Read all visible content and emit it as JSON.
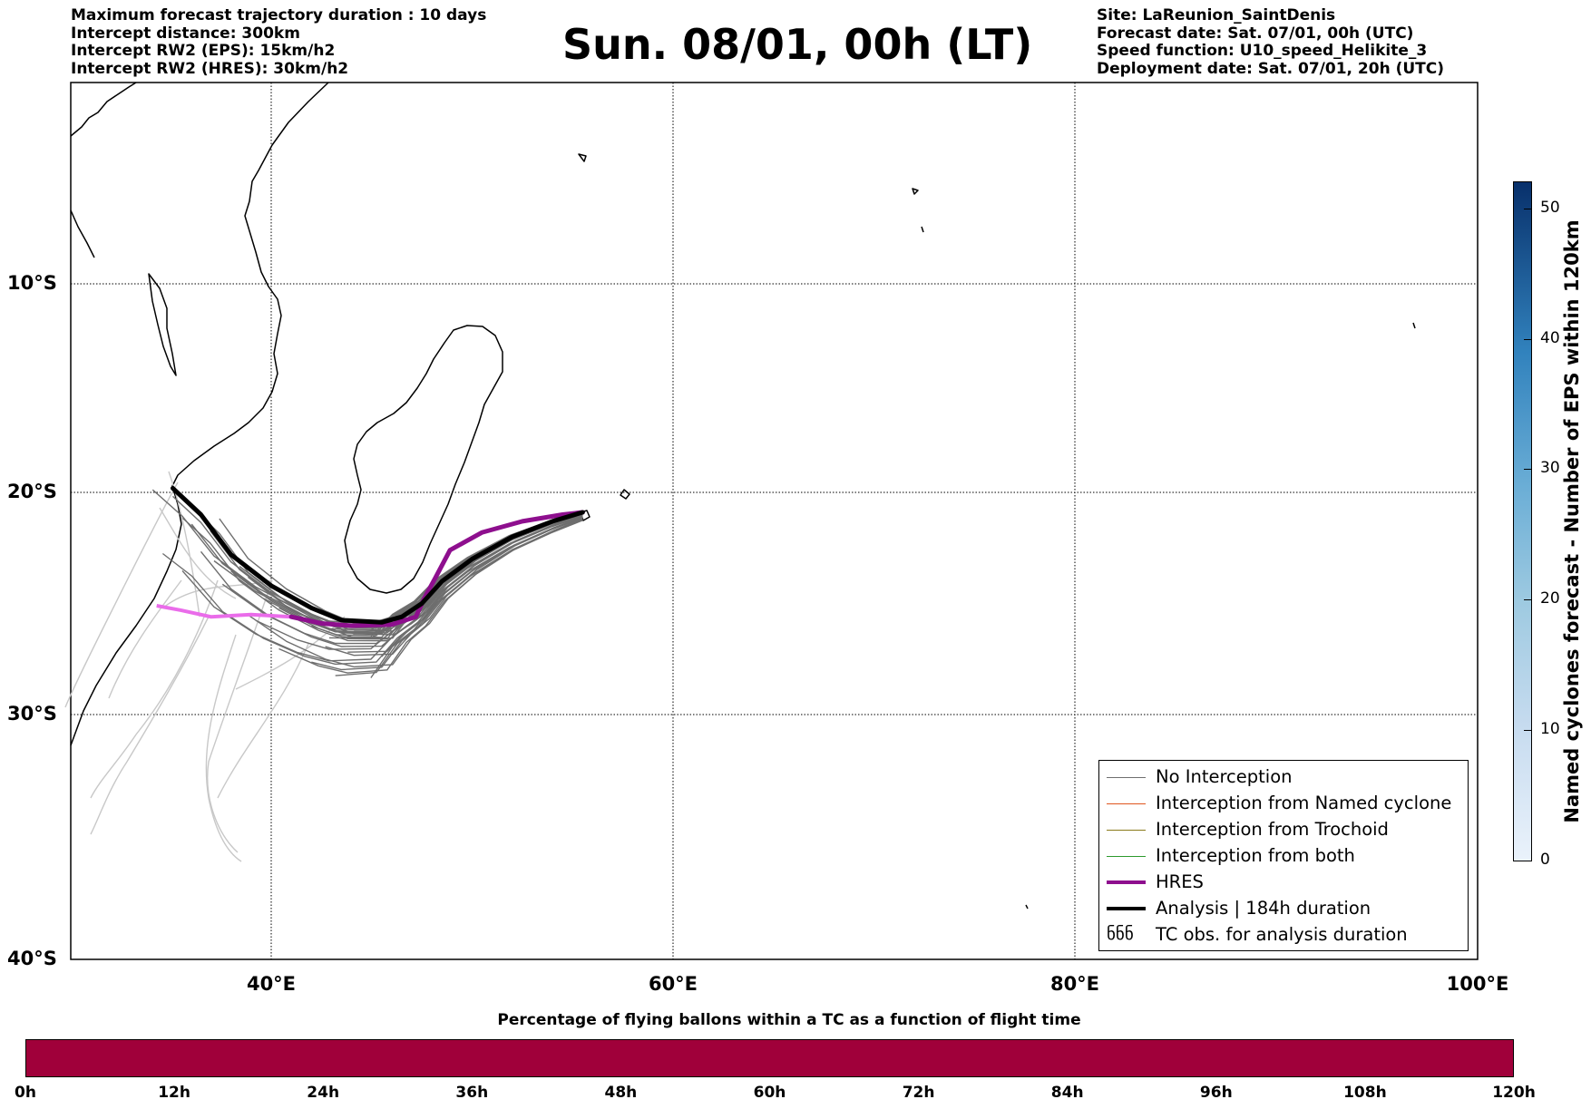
{
  "header_left": [
    "Maximum forecast trajectory duration : 10 days",
    "Intercept distance: 300km",
    "Intercept RW2 (EPS):  15km/h2",
    "Intercept RW2 (HRES): 30km/h2"
  ],
  "title": "Sun. 08/01, 00h (LT)",
  "header_right": [
    "Site: LaReunion_SaintDenis",
    "Forecast date: Sat. 07/01, 00h (UTC)",
    "Speed function: U10_speed_Helikite_3",
    "Deployment date: Sat. 07/01, 20h (UTC)"
  ],
  "map": {
    "lon_range": [
      30,
      100
    ],
    "lat_range": [
      -40,
      -0.5
    ],
    "lat_labels": [
      "10°S",
      "20°S",
      "30°S",
      "40°S"
    ],
    "lon_labels": [
      "40°E",
      "60°E",
      "80°E",
      "100°E"
    ],
    "colors": {
      "coast": "#000000",
      "no_interception": "#6e6e6e",
      "faded_trajectory": "#c8c8c8",
      "named_cyclone": "#e0561e",
      "trochoid": "#8a7a1a",
      "both": "#2c9a2c",
      "hres": "#8e0f8e",
      "hres_early": "#ea6cea",
      "analysis": "#000000"
    }
  },
  "legend": {
    "items": [
      {
        "label": "No Interception",
        "color": "#6e6e6e",
        "style": "thin"
      },
      {
        "label": "Interception from Named cyclone",
        "color": "#e0561e",
        "style": "thin"
      },
      {
        "label": "Interception from Trochoid",
        "color": "#8a7a1a",
        "style": "thin"
      },
      {
        "label": "Interception from both",
        "color": "#2c9a2c",
        "style": "thin"
      },
      {
        "label": "HRES",
        "color": "#8e0f8e",
        "style": "thick"
      },
      {
        "label": "Analysis | 184h duration",
        "color": "#000000",
        "style": "thick"
      },
      {
        "label": "TC obs. for analysis duration",
        "color": "#000000",
        "style": "symbol",
        "symbol": "ნნნ"
      }
    ]
  },
  "colorbar_right": {
    "label": "Named cyclones forecast - Number of EPS within 120km",
    "ticks": [
      "0",
      "10",
      "20",
      "30",
      "40",
      "50"
    ],
    "range": [
      0,
      52
    ],
    "colors": [
      "#eaf2fb",
      "#08306b"
    ]
  },
  "colorbar_bottom": {
    "title": "Percentage of flying ballons within a TC as a function of flight time",
    "ticks": [
      "0h",
      "12h",
      "24h",
      "36h",
      "48h",
      "60h",
      "72h",
      "84h",
      "96h",
      "108h",
      "120h"
    ],
    "fill_color": "#a0003a"
  },
  "chart_data": {
    "type": "line",
    "x_unit": "longitude (°E)",
    "y_unit": "latitude (°)",
    "series": [
      {
        "name": "HRES",
        "points": [
          [
            55.5,
            -20.9
          ],
          [
            54.5,
            -21.0
          ],
          [
            52.5,
            -21.3
          ],
          [
            50.5,
            -21.8
          ],
          [
            48.9,
            -22.6
          ],
          [
            48.2,
            -23.8
          ],
          [
            47.6,
            -24.8
          ],
          [
            47.2,
            -25.6
          ],
          [
            46.0,
            -25.95
          ],
          [
            44.0,
            -26.0
          ],
          [
            42.5,
            -25.9
          ],
          [
            41.0,
            -25.6
          ],
          [
            39.0,
            -25.5
          ],
          [
            37.0,
            -25.6
          ],
          [
            35.5,
            -25.3
          ],
          [
            34.3,
            -25.1
          ]
        ]
      },
      {
        "name": "Analysis | 184h duration",
        "points": [
          [
            55.5,
            -20.9
          ],
          [
            54.0,
            -21.3
          ],
          [
            52.0,
            -22.0
          ],
          [
            50.0,
            -23.0
          ],
          [
            48.5,
            -24.0
          ],
          [
            47.5,
            -25.0
          ],
          [
            46.5,
            -25.6
          ],
          [
            45.5,
            -25.85
          ],
          [
            43.5,
            -25.75
          ],
          [
            42.0,
            -25.2
          ],
          [
            40.0,
            -24.2
          ],
          [
            38.0,
            -22.8
          ],
          [
            36.5,
            -21.0
          ],
          [
            35.1,
            -19.8
          ]
        ]
      }
    ]
  }
}
